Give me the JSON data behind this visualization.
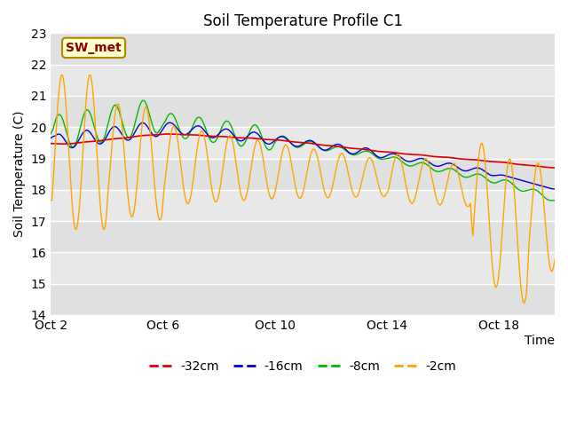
{
  "title": "Soil Temperature Profile C1",
  "ylabel": "Soil Temperature (C)",
  "xlabel": "Time",
  "ylim": [
    14.0,
    23.0
  ],
  "yticks": [
    14.0,
    15.0,
    16.0,
    17.0,
    18.0,
    19.0,
    20.0,
    21.0,
    22.0,
    23.0
  ],
  "xtick_labels": [
    "Oct 2",
    "Oct 6",
    "Oct 10",
    "Oct 14",
    "Oct 18"
  ],
  "xtick_positions": [
    0,
    4,
    8,
    12,
    16
  ],
  "xlim": [
    0,
    18
  ],
  "colors": {
    "-32cm": "#dd0000",
    "-16cm": "#0000dd",
    "-8cm": "#00bb00",
    "-2cm": "#ffa500"
  },
  "annotation_text": "SW_met",
  "annotation_bg": "#ffffcc",
  "annotation_border": "#aa8800",
  "annotation_text_color": "#880000",
  "fig_bg_color": "#ffffff",
  "plot_bg_color": "#e8e8e8",
  "grid_color": "#ffffff",
  "title_fontsize": 12,
  "label_fontsize": 10,
  "tick_fontsize": 10
}
